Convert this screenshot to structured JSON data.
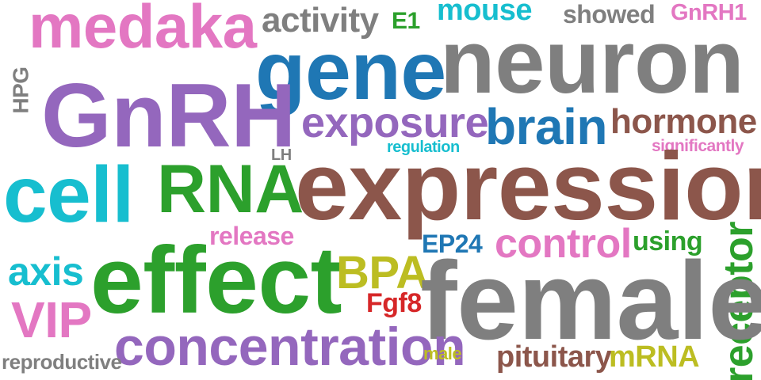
{
  "colors": {
    "pink": "#e377c2",
    "purple": "#9467bd",
    "blue": "#1f77b4",
    "gray": "#7f7f7f",
    "green": "#2ca02c",
    "cyan": "#17becf",
    "brown": "#8c564b",
    "olive": "#bcbd22",
    "red": "#d62728"
  },
  "words": {
    "medaka": "medaka",
    "activity": "activity",
    "e1": "E1",
    "mouse": "mouse",
    "showed": "showed",
    "gnrh1": "GnRH1",
    "gene": "gene",
    "neuron": "neuron",
    "hpg": "HPG",
    "gnrh": "GnRH",
    "exposure": "exposure",
    "brain": "brain",
    "hormone": "hormone",
    "regulation": "regulation",
    "significantly": "significantly",
    "lh": "LH",
    "cell": "cell",
    "rna": "RNA",
    "expression": "expression",
    "release": "release",
    "ep24": "EP24",
    "control": "control",
    "using": "using",
    "receptor": "receptor",
    "axis": "axis",
    "effect": "effect",
    "bpa": "BPA",
    "fgf8": "Fgf8",
    "female": "female",
    "vip": "VIP",
    "concentration": "concentration",
    "male": "male",
    "pituitary": "pituitary",
    "mrna": "mRNA",
    "reproductive": "reproductive"
  }
}
